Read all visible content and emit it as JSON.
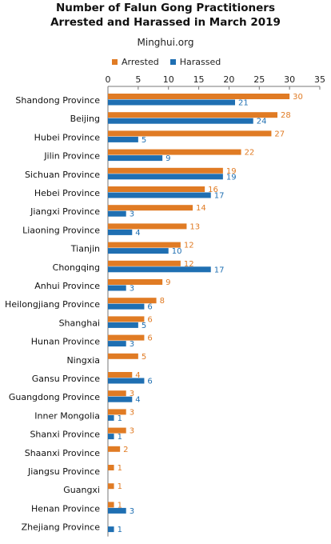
{
  "chart_data": {
    "type": "bar",
    "orientation": "horizontal",
    "title_line1": "Number of Falun Gong Practitioners",
    "title_line2": "Arrested and Harassed in March 2019",
    "subtitle": "Minghui.org",
    "categories": [
      "Shandong Province",
      "Beijing",
      "Hubei Province",
      "Jilin Province",
      "Sichuan Province",
      "Hebei Province",
      "Jiangxi Province",
      "Liaoning Province",
      "Tianjin",
      "Chongqing",
      "Anhui Province",
      "Heilongjiang Province",
      "Shanghai",
      "Hunan Province",
      "Ningxia",
      "Gansu Province",
      "Guangdong Province",
      "Inner Mongolia",
      "Shanxi Province",
      "Shaanxi Province",
      "Jiangsu Province",
      "Guangxi",
      "Henan Province",
      "Zhejiang Province"
    ],
    "series": [
      {
        "name": "Arrested",
        "color": "#e07b24",
        "values": [
          30,
          28,
          27,
          22,
          19,
          16,
          14,
          13,
          12,
          12,
          9,
          8,
          6,
          6,
          5,
          4,
          3,
          3,
          3,
          2,
          1,
          1,
          1,
          null
        ]
      },
      {
        "name": "Harassed",
        "color": "#1f6fb2",
        "values": [
          21,
          24,
          5,
          9,
          19,
          17,
          3,
          4,
          10,
          17,
          3,
          6,
          5,
          3,
          null,
          6,
          4,
          1,
          1,
          null,
          null,
          null,
          3,
          1
        ]
      }
    ],
    "xlim": [
      0,
      35
    ],
    "xticks": [
      0,
      5,
      10,
      15,
      20,
      25,
      30,
      35
    ],
    "legend_position": "top",
    "grid": false
  }
}
